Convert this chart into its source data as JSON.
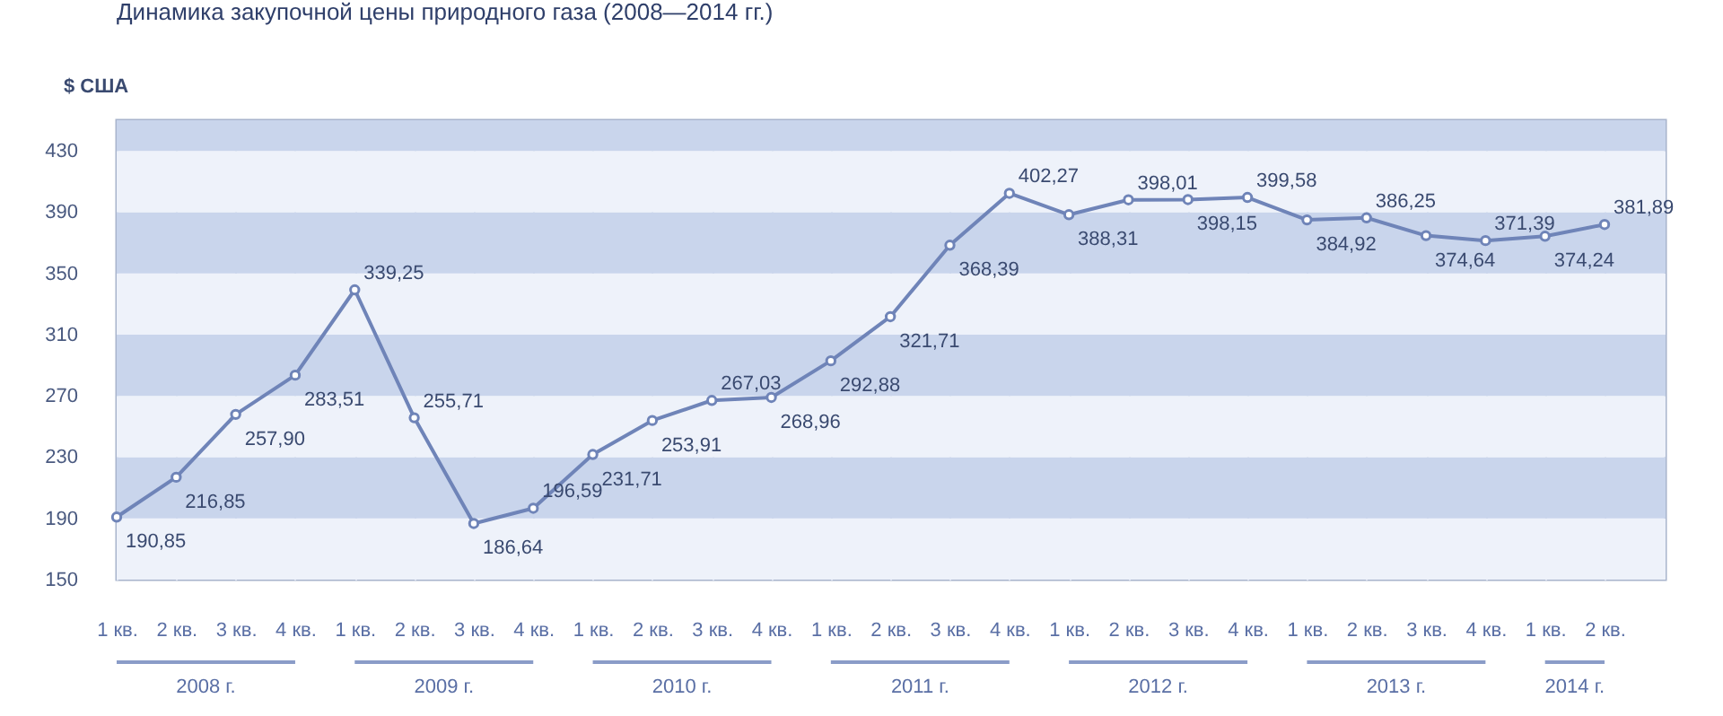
{
  "chart_data": {
    "type": "line",
    "title": "Динамика закупочной цены природного газа (2008—2014 гг.)",
    "ylabel": "$ США",
    "categories": [
      "1 кв.",
      "2 кв.",
      "3 кв.",
      "4 кв.",
      "1 кв.",
      "2 кв.",
      "3 кв.",
      "4 кв.",
      "1 кв.",
      "2 кв.",
      "3 кв.",
      "4 кв.",
      "1 кв.",
      "2 кв.",
      "3 кв.",
      "4 кв.",
      "1 кв.",
      "2 кв.",
      "3 кв.",
      "4 кв.",
      "1 кв.",
      "2 кв.",
      "3 кв.",
      "4 кв.",
      "1 кв.",
      "2 кв."
    ],
    "annotations": [
      "2008 г.",
      "2009 г.",
      "2010 г.",
      "2011 г.",
      "2012 г.",
      "2013 г.",
      "2014 г."
    ],
    "series": [
      {
        "color": "#6f84b8",
        "values": [
          190.85,
          216.85,
          257.9,
          283.51,
          339.25,
          255.71,
          186.64,
          196.59,
          231.71,
          253.91,
          267.03,
          268.96,
          292.88,
          321.71,
          368.39,
          402.27,
          388.31,
          398.01,
          398.15,
          399.58,
          384.92,
          386.25,
          374.64,
          371.39,
          374.24,
          381.89
        ],
        "value_labels": [
          "190,85",
          "216,85",
          "257,90",
          "283,51",
          "339,25",
          "255,71",
          "186,64",
          "196,59",
          "231,71",
          "253,91",
          "267,03",
          "268,96",
          "292,88",
          "321,71",
          "368,39",
          "402,27",
          "388,31",
          "398,01",
          "398,15",
          "399,58",
          "384,92",
          "386,25",
          "374,64",
          "371,39",
          "374,24",
          "381,89"
        ]
      }
    ],
    "ylim": [
      150,
      450
    ],
    "yticks": [
      150,
      190,
      230,
      270,
      310,
      350,
      390,
      430
    ],
    "grid": true,
    "marker": "circle",
    "line_style": "solid"
  }
}
